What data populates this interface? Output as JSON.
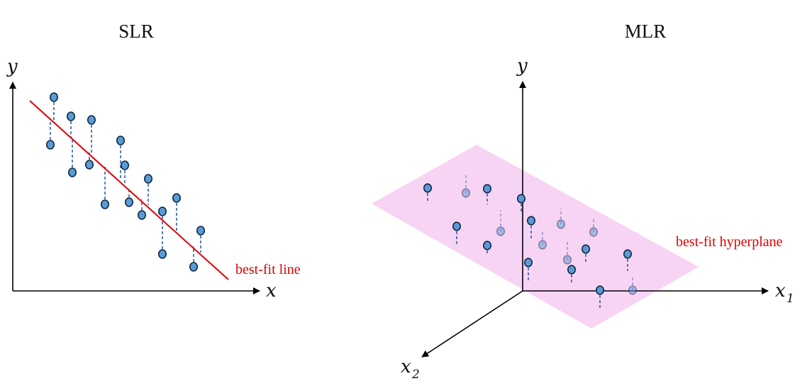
{
  "titles": {
    "left": "SLR",
    "right": "MLR"
  },
  "slr": {
    "y_axis_label": "y",
    "x_axis_label": "x",
    "line_label": "best-fit line"
  },
  "mlr": {
    "y_axis_label": "y",
    "x1_axis_label_main": "x",
    "x1_axis_label_sub": "1",
    "x2_axis_label_main": "x",
    "x2_axis_label_sub": "2",
    "plane_label": "best-fit hyperplane"
  },
  "colors": {
    "fit_line": "#e00000",
    "annotation": "#e00000",
    "point_fill": "#5b9bd5",
    "point_stroke": "#0d2744",
    "residual": "#2e5fa8",
    "plane": "#f8d4f4",
    "axes": "#000000"
  }
}
